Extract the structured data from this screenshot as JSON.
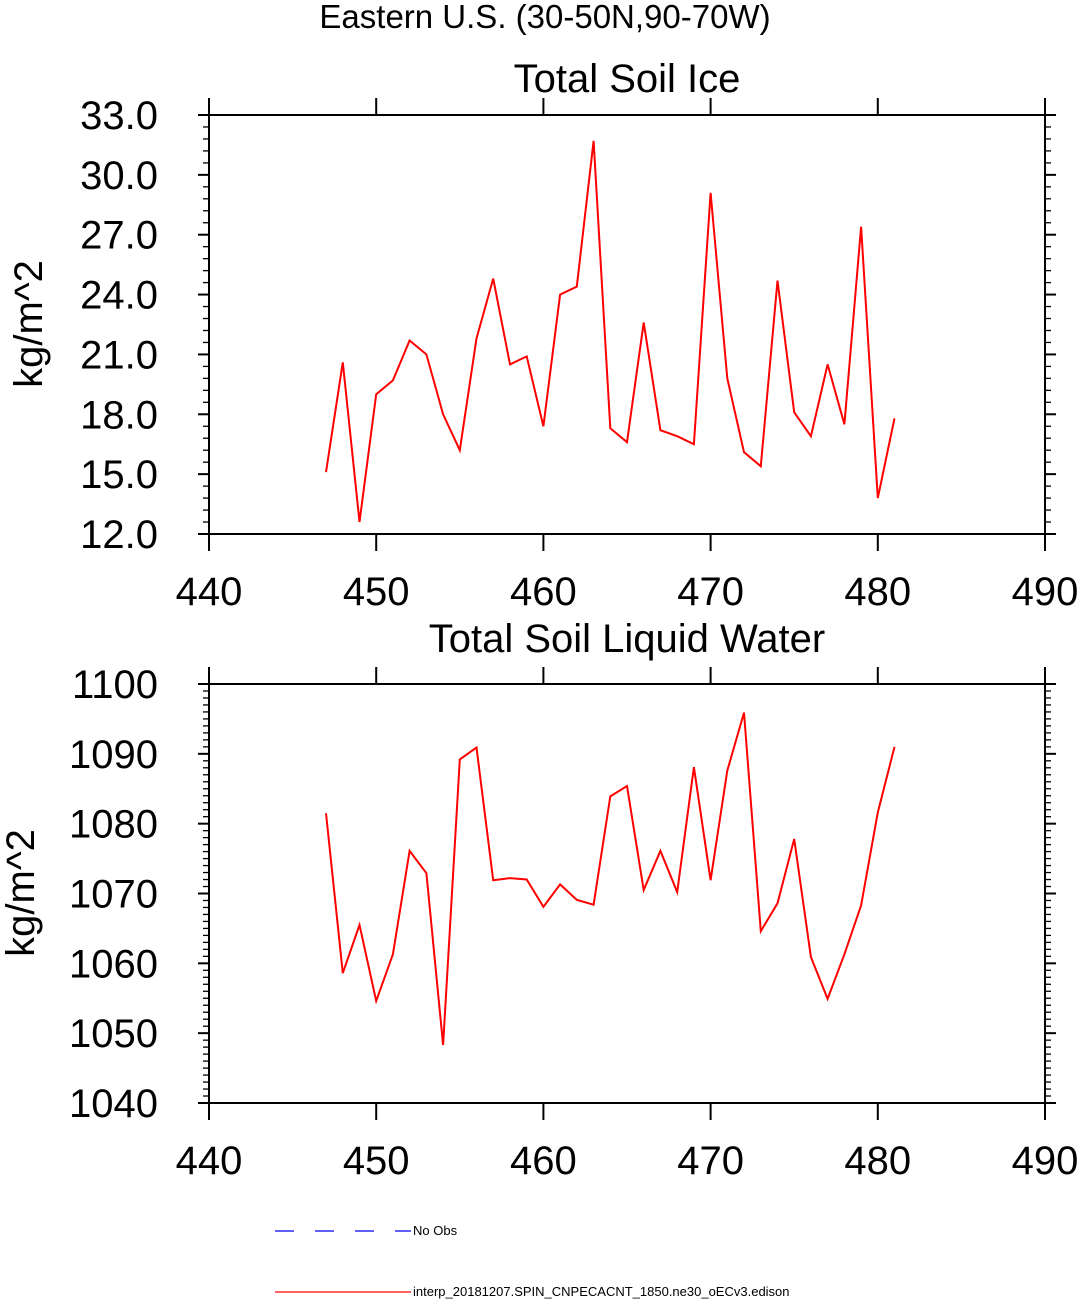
{
  "suptitle": "Eastern U.S. (30-50N,90-70W)",
  "chart_data": [
    {
      "type": "line",
      "title": "Total Soil Ice",
      "xlabel": "",
      "ylabel": "kg/m^2",
      "xlim": [
        440,
        490
      ],
      "ylim": [
        12,
        33
      ],
      "xticks": [
        "440",
        "450",
        "460",
        "470",
        "480",
        "490"
      ],
      "yticks": [
        "12.0",
        "15.0",
        "18.0",
        "21.0",
        "24.0",
        "27.0",
        "30.0",
        "33.0"
      ],
      "grid": false,
      "series": [
        {
          "name": "interp_20181207.SPIN_CNPECACNT_1850.ne30_oECv3.edison",
          "color": "#ff0000",
          "x": [
            447,
            448,
            449,
            450,
            451,
            452,
            453,
            454,
            455,
            456,
            457,
            458,
            459,
            460,
            461,
            462,
            463,
            464,
            465,
            466,
            467,
            468,
            469,
            470,
            471,
            472,
            473,
            474,
            475,
            476,
            477,
            478,
            479,
            480,
            481
          ],
          "values": [
            15.1,
            20.6,
            12.6,
            19.0,
            19.7,
            21.7,
            21.0,
            18.0,
            16.2,
            21.8,
            24.8,
            20.5,
            20.9,
            17.4,
            24.0,
            24.4,
            31.7,
            17.3,
            16.6,
            22.6,
            17.2,
            16.9,
            16.5,
            29.1,
            19.8,
            16.1,
            15.4,
            24.7,
            18.1,
            16.9,
            20.5,
            17.5,
            27.4,
            13.8,
            17.8
          ]
        }
      ]
    },
    {
      "type": "line",
      "title": "Total Soil Liquid Water",
      "xlabel": "",
      "ylabel": "kg/m^2",
      "xlim": [
        440,
        490
      ],
      "ylim": [
        1040,
        1100
      ],
      "xticks": [
        "440",
        "450",
        "460",
        "470",
        "480",
        "490"
      ],
      "yticks": [
        "1040",
        "1050",
        "1060",
        "1070",
        "1080",
        "1090",
        "1100"
      ],
      "grid": false,
      "series": [
        {
          "name": "interp_20181207.SPIN_CNPECACNT_1850.ne30_oECv3.edison",
          "color": "#ff0000",
          "x": [
            447,
            448,
            449,
            450,
            451,
            452,
            453,
            454,
            455,
            456,
            457,
            458,
            459,
            460,
            461,
            462,
            463,
            464,
            465,
            466,
            467,
            468,
            469,
            470,
            471,
            472,
            473,
            474,
            475,
            476,
            477,
            478,
            479,
            480,
            481
          ],
          "values": [
            1081.5,
            1058.6,
            1065.5,
            1054.6,
            1061.3,
            1076.1,
            1072.9,
            1048.3,
            1089.2,
            1090.9,
            1071.9,
            1072.2,
            1072.0,
            1068.1,
            1071.3,
            1069.1,
            1068.4,
            1083.9,
            1085.4,
            1070.5,
            1076.1,
            1070.2,
            1088.1,
            1071.9,
            1087.6,
            1095.9,
            1064.6,
            1068.6,
            1077.8,
            1060.9,
            1054.9,
            1061.3,
            1068.3,
            1081.6,
            1091.0
          ]
        }
      ]
    }
  ],
  "legend": [
    {
      "label": "No Obs",
      "color": "#0000ff",
      "style": "dashed"
    },
    {
      "label": "interp_20181207.SPIN_CNPECACNT_1850.ne30_oECv3.edison",
      "color": "#ff0000",
      "style": "solid"
    }
  ]
}
